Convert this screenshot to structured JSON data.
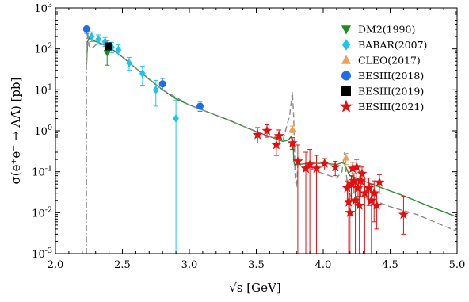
{
  "chart_data": {
    "type": "scatter",
    "title": "",
    "xlabel": "√s [GeV]",
    "ylabel": "σ(e⁺e⁻ → ΛΛ̄) [pb]",
    "xlim": [
      2.0,
      5.0
    ],
    "ylim": [
      0.001,
      1000
    ],
    "yscale": "log",
    "legend_position": "top-right",
    "x_ticks": [
      {
        "v": 2.0,
        "label": "2.0"
      },
      {
        "v": 2.5,
        "label": "2.5"
      },
      {
        "v": 3.0,
        "label": "3.0"
      },
      {
        "v": 3.5,
        "label": "3.5"
      },
      {
        "v": 4.0,
        "label": "4.0"
      },
      {
        "v": 4.5,
        "label": "4.5"
      },
      {
        "v": 5.0,
        "label": "5.0"
      }
    ],
    "y_ticks": [
      {
        "exp": -3,
        "label": "10"
      },
      {
        "exp": -2,
        "label": "10"
      },
      {
        "exp": -1,
        "label": "10"
      },
      {
        "exp": 0,
        "label": "10"
      },
      {
        "exp": 1,
        "label": "10"
      },
      {
        "exp": 2,
        "label": "10"
      },
      {
        "exp": 3,
        "label": "10"
      }
    ],
    "series": [
      {
        "name": "DM2(1990)",
        "marker": "triangle-down",
        "color": "#1e8c1e",
        "points": [
          {
            "x": 2.386,
            "y": 80,
            "lo": 40,
            "hi": 160
          }
        ]
      },
      {
        "name": "BABAR(2007)",
        "marker": "diamond",
        "color": "#1fc4ee",
        "points": [
          {
            "x": 2.27,
            "y": 200,
            "lo": 150,
            "hi": 260
          },
          {
            "x": 2.32,
            "y": 170,
            "lo": 130,
            "hi": 220
          },
          {
            "x": 2.37,
            "y": 150,
            "lo": 115,
            "hi": 190
          },
          {
            "x": 2.42,
            "y": 110,
            "lo": 80,
            "hi": 145
          },
          {
            "x": 2.47,
            "y": 95,
            "lo": 70,
            "hi": 125
          },
          {
            "x": 2.55,
            "y": 45,
            "lo": 30,
            "hi": 62
          },
          {
            "x": 2.65,
            "y": 25,
            "lo": 13,
            "hi": 38
          },
          {
            "x": 2.75,
            "y": 10,
            "lo": 4,
            "hi": 17
          },
          {
            "x": 2.9,
            "y": 2,
            "lo": 0.0005,
            "hi": 5.5
          }
        ]
      },
      {
        "name": "CLEO(2017)",
        "marker": "triangle-up",
        "color": "#f0a050",
        "points": [
          {
            "x": 3.77,
            "y": 1.1,
            "lo": 0.9,
            "hi": 1.3
          },
          {
            "x": 4.17,
            "y": 0.22,
            "lo": 0.15,
            "hi": 0.28
          }
        ]
      },
      {
        "name": "BESIII(2018)",
        "marker": "circle",
        "color": "#1a6fe6",
        "points": [
          {
            "x": 2.2324,
            "y": 305,
            "lo": 240,
            "hi": 380
          },
          {
            "x": 2.4,
            "y": 120,
            "lo": 100,
            "hi": 140
          },
          {
            "x": 2.8,
            "y": 14,
            "lo": 10,
            "hi": 19
          },
          {
            "x": 3.08,
            "y": 4,
            "lo": 3,
            "hi": 5.2
          }
        ]
      },
      {
        "name": "BESIII(2019)",
        "marker": "square",
        "color": "#000000",
        "points": [
          {
            "x": 2.396,
            "y": 115,
            "lo": 100,
            "hi": 130
          }
        ]
      },
      {
        "name": "BESIII(2021)",
        "marker": "star",
        "color": "#e01010",
        "points": [
          {
            "x": 3.51,
            "y": 0.8,
            "lo": 0.5,
            "hi": 1.2
          },
          {
            "x": 3.58,
            "y": 1.0,
            "lo": 0.7,
            "hi": 1.4
          },
          {
            "x": 3.65,
            "y": 0.45,
            "lo": 0.25,
            "hi": 0.7
          },
          {
            "x": 3.67,
            "y": 0.75,
            "lo": 0.5,
            "hi": 1.05
          },
          {
            "x": 3.77,
            "y": 0.5,
            "lo": 0.35,
            "hi": 0.68
          },
          {
            "x": 3.81,
            "y": 0.18,
            "lo": 0.0005,
            "hi": 0.45
          },
          {
            "x": 3.87,
            "y": 0.12,
            "lo": 0.0005,
            "hi": 0.3
          },
          {
            "x": 3.9,
            "y": 0.15,
            "lo": 0.0005,
            "hi": 0.35
          },
          {
            "x": 3.95,
            "y": 0.12,
            "lo": 0.0005,
            "hi": 0.25
          },
          {
            "x": 4.01,
            "y": 0.16,
            "lo": 0.11,
            "hi": 0.21
          },
          {
            "x": 4.09,
            "y": 0.13,
            "lo": 0.08,
            "hi": 0.18
          },
          {
            "x": 4.18,
            "y": 0.04,
            "lo": 0.02,
            "hi": 0.06
          },
          {
            "x": 4.19,
            "y": 0.018,
            "lo": 0.0005,
            "hi": 0.05
          },
          {
            "x": 4.2,
            "y": 0.01,
            "lo": 0.0005,
            "hi": 0.03
          },
          {
            "x": 4.21,
            "y": 0.05,
            "lo": 0.02,
            "hi": 0.08
          },
          {
            "x": 4.22,
            "y": 0.12,
            "lo": 0.07,
            "hi": 0.17
          },
          {
            "x": 4.23,
            "y": 0.06,
            "lo": 0.03,
            "hi": 0.09
          },
          {
            "x": 4.24,
            "y": 0.02,
            "lo": 0.0005,
            "hi": 0.05
          },
          {
            "x": 4.25,
            "y": 0.13,
            "lo": 0.07,
            "hi": 0.2
          },
          {
            "x": 4.26,
            "y": 0.04,
            "lo": 0.015,
            "hi": 0.07
          },
          {
            "x": 4.27,
            "y": 0.015,
            "lo": 0.0005,
            "hi": 0.04
          },
          {
            "x": 4.28,
            "y": 0.06,
            "lo": 0.025,
            "hi": 0.1
          },
          {
            "x": 4.29,
            "y": 0.09,
            "lo": 0.05,
            "hi": 0.13
          },
          {
            "x": 4.31,
            "y": 0.03,
            "lo": 0.0005,
            "hi": 0.07
          },
          {
            "x": 4.34,
            "y": 0.04,
            "lo": 0.015,
            "hi": 0.07
          },
          {
            "x": 4.36,
            "y": 0.02,
            "lo": 0.0005,
            "hi": 0.05
          },
          {
            "x": 4.38,
            "y": 0.03,
            "lo": 0.006,
            "hi": 0.06
          },
          {
            "x": 4.4,
            "y": 0.015,
            "lo": 0.004,
            "hi": 0.03
          },
          {
            "x": 4.42,
            "y": 0.055,
            "lo": 0.03,
            "hi": 0.085
          },
          {
            "x": 4.6,
            "y": 0.009,
            "lo": 0.003,
            "hi": 0.025
          }
        ]
      }
    ],
    "curves": [
      {
        "style": "solid",
        "color": "#2e8b2e",
        "points": [
          [
            2.232,
            40
          ],
          [
            2.24,
            150
          ],
          [
            2.25,
            185
          ],
          [
            2.26,
            170
          ],
          [
            2.28,
            160
          ],
          [
            2.3,
            152
          ],
          [
            2.35,
            132
          ],
          [
            2.4,
            110
          ],
          [
            2.45,
            85
          ],
          [
            2.5,
            63
          ],
          [
            2.6,
            34
          ],
          [
            2.7,
            18
          ],
          [
            2.8,
            10
          ],
          [
            2.9,
            6
          ],
          [
            3.0,
            4.3
          ],
          [
            3.1,
            3.2
          ],
          [
            3.2,
            2.4
          ],
          [
            3.3,
            1.8
          ],
          [
            3.4,
            1.3
          ],
          [
            3.5,
            0.95
          ],
          [
            3.6,
            0.72
          ],
          [
            3.7,
            0.55
          ],
          [
            3.74,
            0.6
          ],
          [
            3.76,
            0.72
          ],
          [
            3.775,
            0.5
          ],
          [
            3.78,
            0.18
          ],
          [
            3.79,
            0.13
          ],
          [
            3.8,
            0.15
          ],
          [
            3.9,
            0.16
          ],
          [
            4.0,
            0.16
          ],
          [
            4.1,
            0.15
          ],
          [
            4.15,
            0.17
          ],
          [
            4.17,
            0.13
          ],
          [
            4.19,
            0.09
          ],
          [
            4.2,
            0.08
          ],
          [
            4.3,
            0.06
          ],
          [
            4.4,
            0.045
          ],
          [
            4.5,
            0.034
          ],
          [
            4.6,
            0.026
          ],
          [
            4.7,
            0.019
          ],
          [
            4.8,
            0.014
          ],
          [
            4.9,
            0.0105
          ],
          [
            5.0,
            0.0078
          ]
        ]
      },
      {
        "style": "dashed",
        "color": "#8a8a8a",
        "points": [
          [
            2.232,
            40
          ],
          [
            2.24,
            260
          ],
          [
            2.25,
            120
          ],
          [
            2.27,
            100
          ],
          [
            2.3,
            125
          ],
          [
            2.35,
            128
          ],
          [
            2.4,
            112
          ],
          [
            2.5,
            64
          ],
          [
            2.6,
            34
          ],
          [
            2.8,
            10
          ],
          [
            3.0,
            4.3
          ],
          [
            3.2,
            2.4
          ],
          [
            3.4,
            1.3
          ],
          [
            3.6,
            0.72
          ],
          [
            3.7,
            0.6
          ],
          [
            3.75,
            2.5
          ],
          [
            3.77,
            9
          ],
          [
            3.78,
            2
          ],
          [
            3.79,
            0.08
          ],
          [
            3.8,
            0.04
          ],
          [
            3.81,
            0.15
          ],
          [
            3.9,
            0.12
          ],
          [
            4.0,
            0.09
          ],
          [
            4.1,
            0.07
          ],
          [
            4.14,
            0.1
          ],
          [
            4.16,
            0.3
          ],
          [
            4.17,
            0.1
          ],
          [
            4.19,
            0.03
          ],
          [
            4.21,
            0.025
          ],
          [
            4.3,
            0.025
          ],
          [
            4.5,
            0.014
          ],
          [
            4.7,
            0.009
          ],
          [
            5.0,
            0.0035
          ]
        ]
      },
      {
        "style": "dashdot",
        "color": "#a0a0a0",
        "points": [
          [
            2.2324,
            0.001
          ],
          [
            2.2324,
            400
          ]
        ]
      }
    ]
  }
}
